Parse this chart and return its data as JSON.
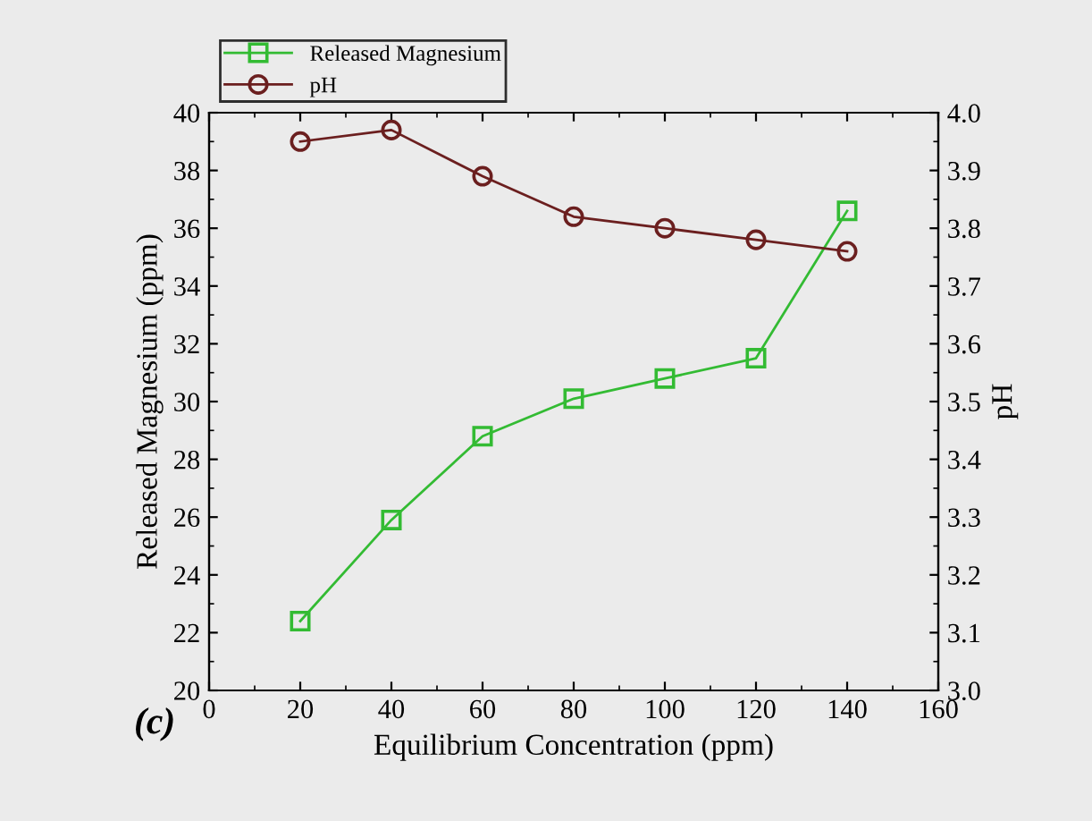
{
  "chart_data": {
    "type": "line",
    "xlabel": "Equilibrium Concentration (ppm)",
    "ylabel": "Released Magnesium (ppm)",
    "y2label": "pH",
    "x": [
      20,
      40,
      60,
      80,
      100,
      120,
      140
    ],
    "series": [
      {
        "name": "Released Magnesium",
        "color": "#33bb33",
        "marker": "square",
        "values": [
          22.4,
          25.9,
          28.8,
          30.1,
          30.8,
          31.5,
          36.6
        ]
      },
      {
        "name": "pH",
        "color": "#6b1f1f",
        "marker": "circle",
        "axis": "y2",
        "values": [
          3.95,
          3.97,
          3.89,
          3.82,
          3.8,
          3.78,
          3.76
        ]
      }
    ],
    "xlim": [
      0,
      160
    ],
    "xticks": [
      0,
      20,
      40,
      60,
      80,
      100,
      120,
      140,
      160
    ],
    "ylim": [
      20,
      40
    ],
    "yticks": [
      20,
      22,
      24,
      26,
      28,
      30,
      32,
      34,
      36,
      38,
      40
    ],
    "y2lim": [
      3.0,
      4.0
    ],
    "y2ticks": [
      {
        "value": 3.0,
        "label": "3.0"
      },
      {
        "value": 3.1,
        "label": "3.1"
      },
      {
        "value": 3.2,
        "label": "3.2"
      },
      {
        "value": 3.3,
        "label": "3.3"
      },
      {
        "value": 3.4,
        "label": "3.4"
      },
      {
        "value": 3.5,
        "label": "3.5"
      },
      {
        "value": 3.6,
        "label": "3.6"
      },
      {
        "value": 3.7,
        "label": "3.7"
      },
      {
        "value": 3.8,
        "label": "3.8"
      },
      {
        "value": 3.9,
        "label": "3.9"
      },
      {
        "value": 4.0,
        "label": "4.0"
      }
    ],
    "annotations": [
      "(c)"
    ],
    "legend": "top left",
    "grid": false
  }
}
